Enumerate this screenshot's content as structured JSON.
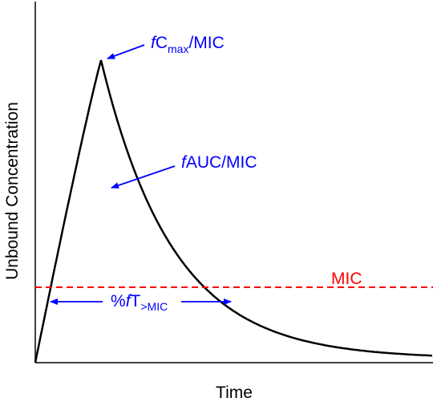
{
  "figure": {
    "x_axis_label": "Time",
    "y_axis_label": "Unbound Concentration",
    "annotations": {
      "cmax": {
        "prefix": "f",
        "main": "C",
        "subscript": "max",
        "suffix": "/MIC"
      },
      "auc": {
        "prefix": "f",
        "text": "AUC/MIC"
      },
      "time_above": {
        "prefix": "%",
        "italic": "f",
        "main": "T",
        "subscript": ">MIC"
      }
    },
    "mic_line_label": "MIC",
    "colors": {
      "curve": "#000000",
      "annotation": "#0000ff",
      "mic_line": "#ff0000",
      "axes": "#000000"
    }
  }
}
